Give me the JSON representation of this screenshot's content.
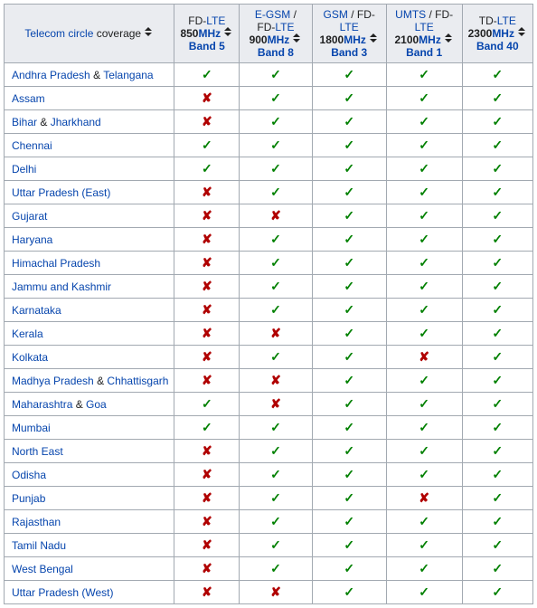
{
  "colors": {
    "link": "#0645ad",
    "check": "#008000",
    "cross": "#b00000",
    "header_bg": "#eaecf0",
    "border": "#a2a9b1"
  },
  "glyphs": {
    "yes": "✓",
    "no": "✘"
  },
  "columns": [
    {
      "top_text": "Telecom circle",
      "top_link": true,
      "top_suffix": " coverage",
      "mid_text": "",
      "bot_text": ""
    },
    {
      "top_text": "FD-",
      "top_link_text": "LTE",
      "mid_text": "850",
      "mid_unit": "MHz",
      "bot_text": "Band 5",
      "bot_link": true
    },
    {
      "top_link_text": "E-GSM",
      "top_sep": " / FD-",
      "top_link_text2": "LTE",
      "mid_text": "900",
      "mid_unit": "MHz",
      "bot_text": "Band 8",
      "bot_link": true
    },
    {
      "top_link_text": "GSM",
      "top_sep": " / FD-",
      "top_link_text2": "LTE",
      "mid_text": "1800",
      "mid_unit": "MHz",
      "bot_text": "Band 3",
      "bot_link": true
    },
    {
      "top_link_text": "UMTS",
      "top_sep": " / FD-",
      "top_link_text2": "LTE",
      "mid_text": "2100",
      "mid_unit": "MHz",
      "bot_text": "Band 1",
      "bot_link": true
    },
    {
      "top_text": "TD-",
      "top_link_text": "LTE",
      "mid_text": "2300",
      "mid_unit": "MHz",
      "bot_text": "Band 40",
      "bot_link": true
    }
  ],
  "rows": [
    {
      "circle": [
        {
          "t": "Andhra Pradesh",
          "l": true
        },
        {
          "t": " & "
        },
        {
          "t": "Telangana",
          "l": true
        }
      ],
      "v": [
        1,
        1,
        1,
        1,
        1
      ]
    },
    {
      "circle": [
        {
          "t": "Assam",
          "l": true
        }
      ],
      "v": [
        0,
        1,
        1,
        1,
        1
      ]
    },
    {
      "circle": [
        {
          "t": "Bihar",
          "l": true
        },
        {
          "t": " & "
        },
        {
          "t": "Jharkhand",
          "l": true
        }
      ],
      "v": [
        0,
        1,
        1,
        1,
        1
      ]
    },
    {
      "circle": [
        {
          "t": "Chennai",
          "l": true
        }
      ],
      "v": [
        1,
        1,
        1,
        1,
        1
      ]
    },
    {
      "circle": [
        {
          "t": "Delhi",
          "l": true
        }
      ],
      "v": [
        1,
        1,
        1,
        1,
        1
      ]
    },
    {
      "circle": [
        {
          "t": "Uttar Pradesh (East)",
          "l": true
        }
      ],
      "v": [
        0,
        1,
        1,
        1,
        1
      ]
    },
    {
      "circle": [
        {
          "t": "Gujarat",
          "l": true
        }
      ],
      "v": [
        0,
        0,
        1,
        1,
        1
      ]
    },
    {
      "circle": [
        {
          "t": "Haryana",
          "l": true
        }
      ],
      "v": [
        0,
        1,
        1,
        1,
        1
      ]
    },
    {
      "circle": [
        {
          "t": "Himachal Pradesh",
          "l": true
        }
      ],
      "v": [
        0,
        1,
        1,
        1,
        1
      ]
    },
    {
      "circle": [
        {
          "t": "Jammu and Kashmir",
          "l": true
        }
      ],
      "v": [
        0,
        1,
        1,
        1,
        1
      ]
    },
    {
      "circle": [
        {
          "t": "Karnataka",
          "l": true
        }
      ],
      "v": [
        0,
        1,
        1,
        1,
        1
      ]
    },
    {
      "circle": [
        {
          "t": "Kerala",
          "l": true
        }
      ],
      "v": [
        0,
        0,
        1,
        1,
        1
      ]
    },
    {
      "circle": [
        {
          "t": "Kolkata",
          "l": true
        }
      ],
      "v": [
        0,
        1,
        1,
        0,
        1
      ]
    },
    {
      "circle": [
        {
          "t": "Madhya Pradesh",
          "l": true
        },
        {
          "t": " & "
        },
        {
          "t": "Chhattisgarh",
          "l": true
        }
      ],
      "v": [
        0,
        0,
        1,
        1,
        1
      ]
    },
    {
      "circle": [
        {
          "t": "Maharashtra",
          "l": true
        },
        {
          "t": " & "
        },
        {
          "t": "Goa",
          "l": true
        }
      ],
      "v": [
        1,
        0,
        1,
        1,
        1
      ]
    },
    {
      "circle": [
        {
          "t": "Mumbai",
          "l": true
        }
      ],
      "v": [
        1,
        1,
        1,
        1,
        1
      ]
    },
    {
      "circle": [
        {
          "t": "North East",
          "l": true
        }
      ],
      "v": [
        0,
        1,
        1,
        1,
        1
      ]
    },
    {
      "circle": [
        {
          "t": "Odisha",
          "l": true
        }
      ],
      "v": [
        0,
        1,
        1,
        1,
        1
      ]
    },
    {
      "circle": [
        {
          "t": "Punjab",
          "l": true
        }
      ],
      "v": [
        0,
        1,
        1,
        0,
        1
      ]
    },
    {
      "circle": [
        {
          "t": "Rajasthan",
          "l": true
        }
      ],
      "v": [
        0,
        1,
        1,
        1,
        1
      ]
    },
    {
      "circle": [
        {
          "t": "Tamil Nadu",
          "l": true
        }
      ],
      "v": [
        0,
        1,
        1,
        1,
        1
      ]
    },
    {
      "circle": [
        {
          "t": "West Bengal",
          "l": true
        }
      ],
      "v": [
        0,
        1,
        1,
        1,
        1
      ]
    },
    {
      "circle": [
        {
          "t": "Uttar Pradesh (West)",
          "l": true
        }
      ],
      "v": [
        0,
        0,
        1,
        1,
        1
      ]
    }
  ]
}
